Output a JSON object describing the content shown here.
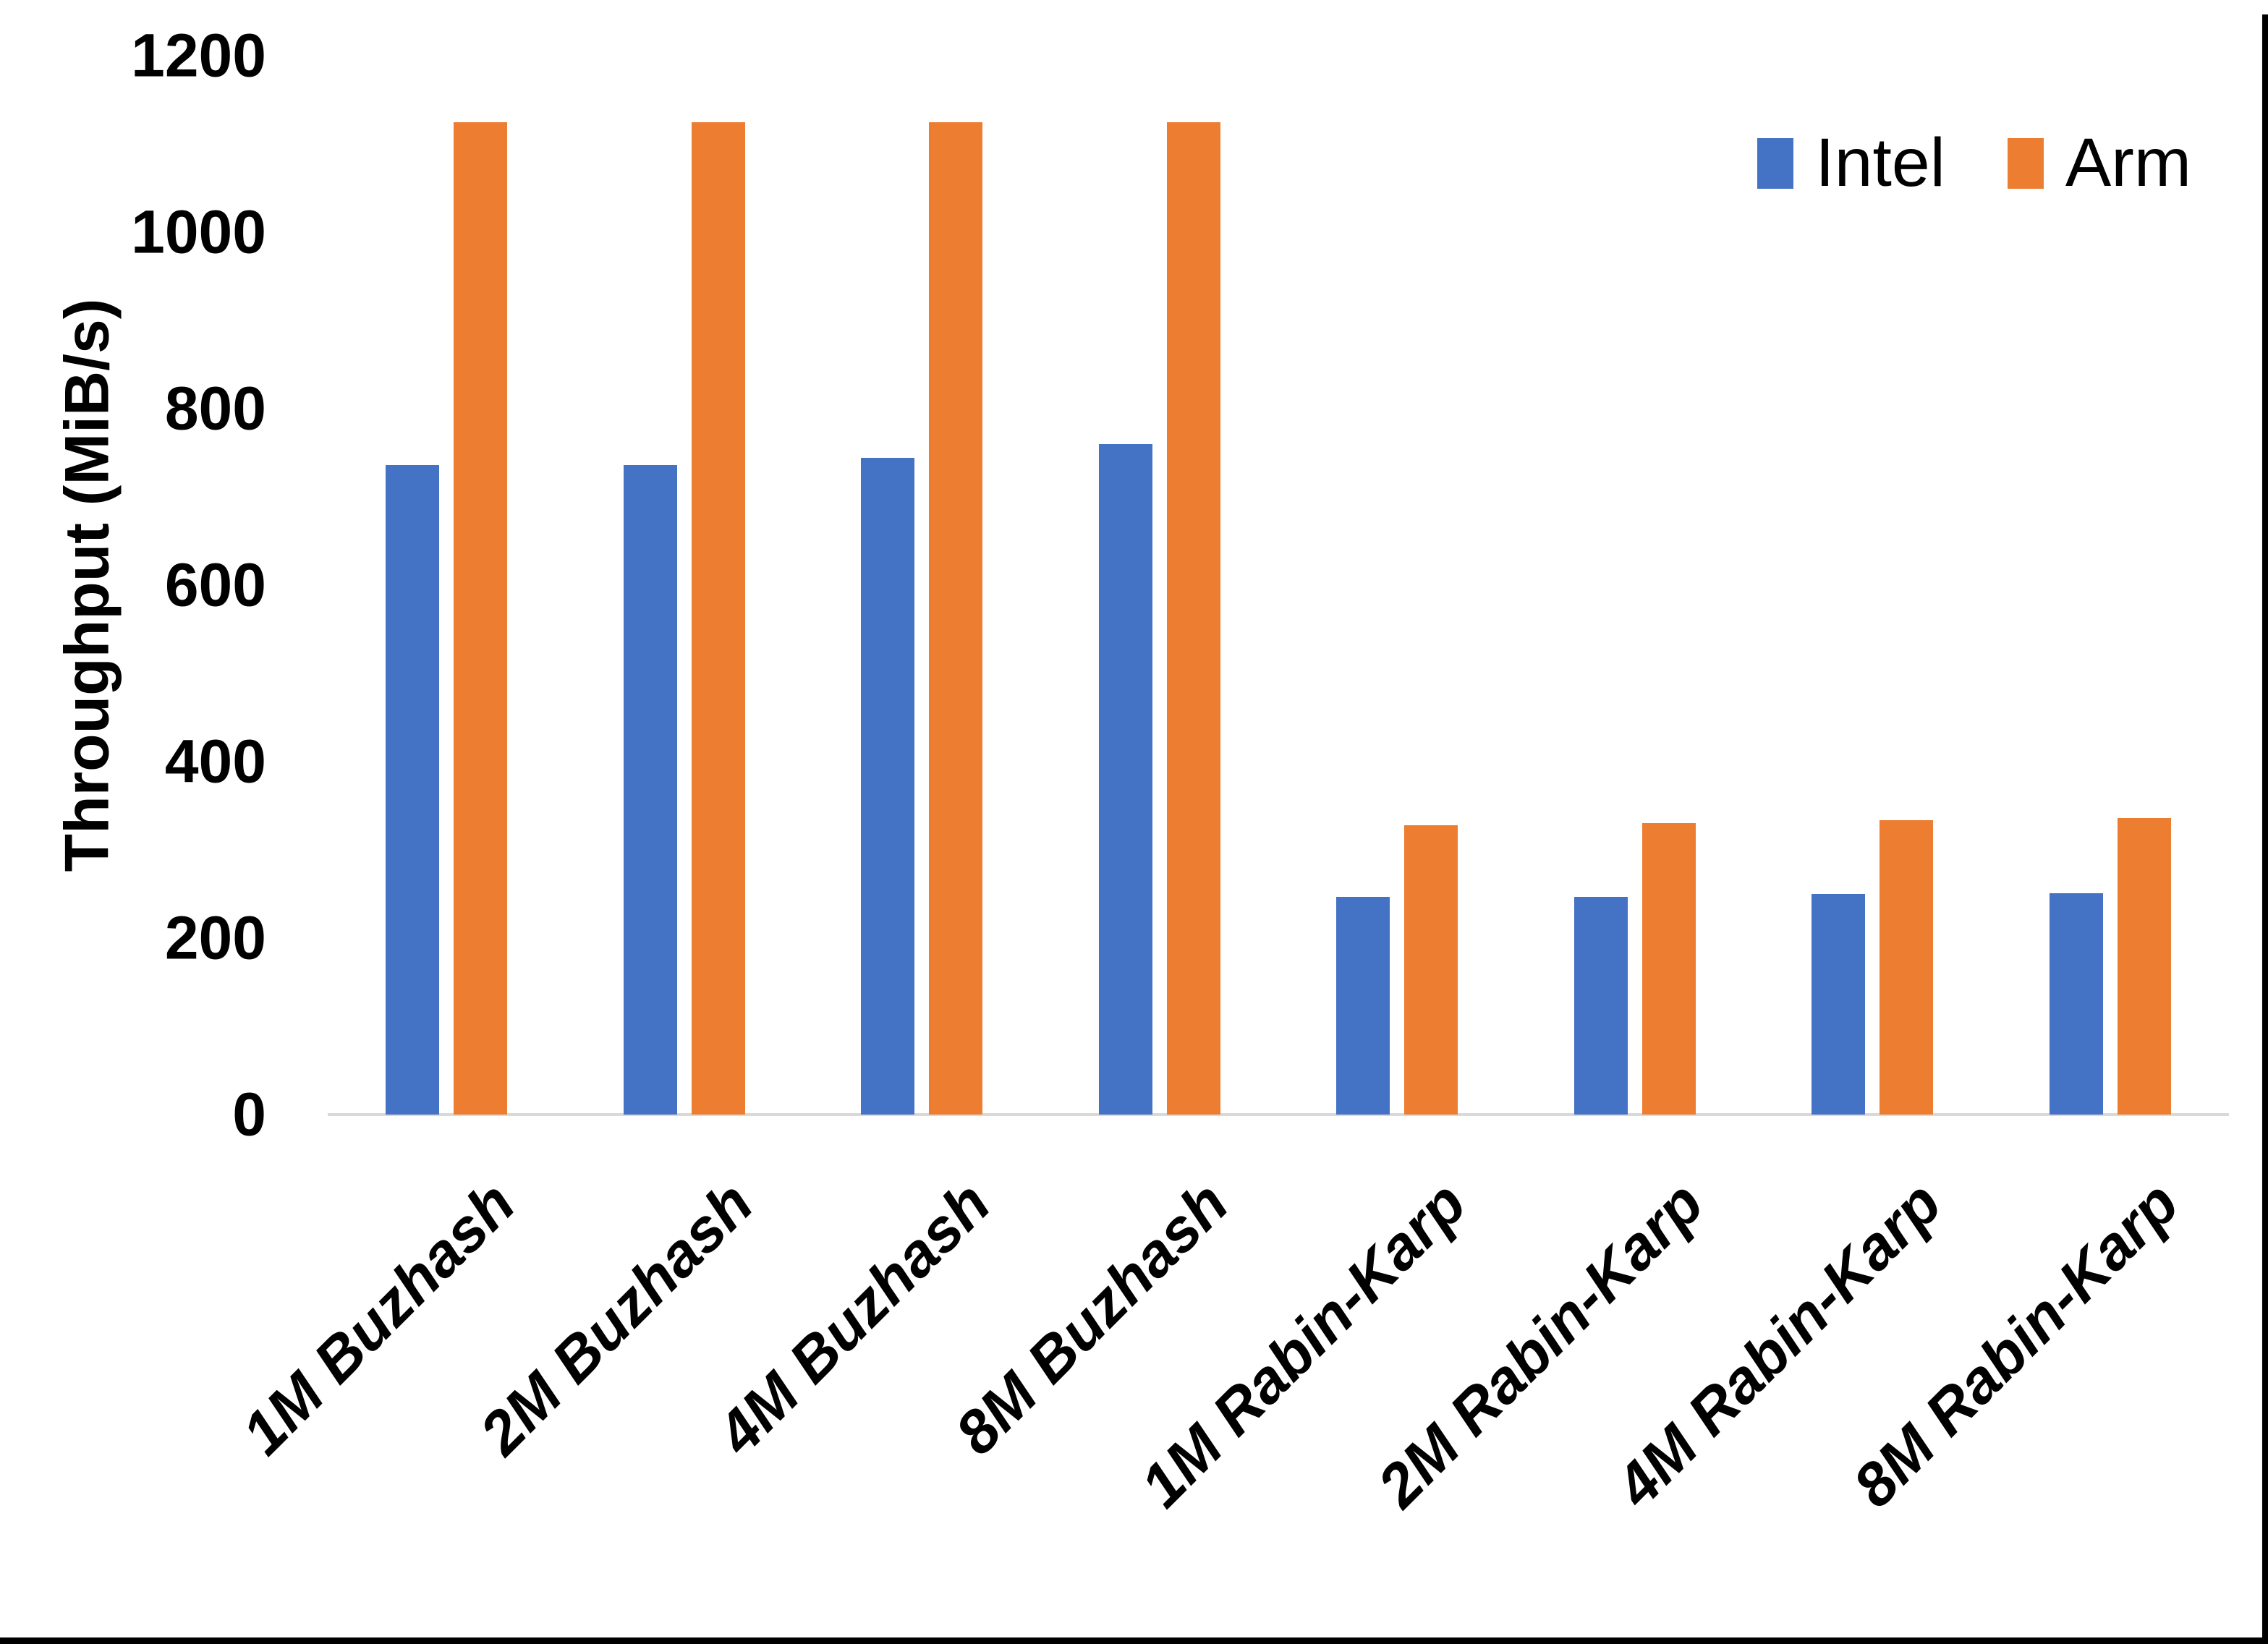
{
  "colors": {
    "background": "#FFFFFF",
    "axis_line": "#D9D9D9",
    "text": "#000000",
    "frame_border": "#000000",
    "intel": "#4472C4",
    "arm": "#ED7D31"
  },
  "chart_data": {
    "type": "bar",
    "title": "",
    "xlabel": "",
    "ylabel": "Throughput (MiB/s)",
    "ylim": [
      0,
      1200
    ],
    "yticks": [
      0,
      200,
      400,
      600,
      800,
      1000,
      1200
    ],
    "grid": false,
    "legend_position": "top-right",
    "categories": [
      "1M Buzhash",
      "2M Buzhash",
      "4M Buzhash",
      "8M Buzhash",
      "1M Rabin-Karp",
      "2M Rabin-Karp",
      "4M Rabin-Karp",
      "8M Rabin-Karp"
    ],
    "series": [
      {
        "name": "Intel",
        "color": "#4472C4",
        "values": [
          736,
          736,
          744,
          760,
          247,
          247,
          250,
          251
        ]
      },
      {
        "name": "Arm",
        "color": "#ED7D31",
        "values": [
          1125,
          1125,
          1125,
          1125,
          328,
          330,
          334,
          336
        ]
      }
    ]
  }
}
